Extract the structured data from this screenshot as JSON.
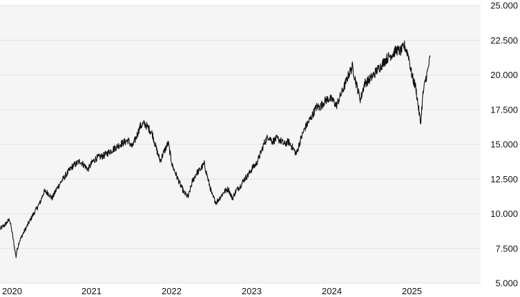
{
  "colors": {
    "plot_background": "#f5f5f5",
    "grid": "#e2e2e2",
    "line": "#111111",
    "text": "#111111"
  },
  "chart_data": {
    "type": "line",
    "title": "",
    "xlabel": "",
    "ylabel": "",
    "grid": "horizontal",
    "y_axis_side": "right",
    "xlim": [
      2020.0,
      2026.0
    ],
    "ylim": [
      5000,
      25000
    ],
    "x_ticks": [
      {
        "value": 2020,
        "label": "2020"
      },
      {
        "value": 2021,
        "label": "2021"
      },
      {
        "value": 2022,
        "label": "2022"
      },
      {
        "value": 2023,
        "label": "2023"
      },
      {
        "value": 2024,
        "label": "2024"
      },
      {
        "value": 2025,
        "label": "2025"
      }
    ],
    "y_ticks": [
      {
        "value": 5000,
        "label": "5.000"
      },
      {
        "value": 7500,
        "label": "7.500"
      },
      {
        "value": 10000,
        "label": "10.000"
      },
      {
        "value": 12500,
        "label": "12.500"
      },
      {
        "value": 15000,
        "label": "15.000"
      },
      {
        "value": 17500,
        "label": "17.500"
      },
      {
        "value": 20000,
        "label": "20.000"
      },
      {
        "value": 22500,
        "label": "22.500"
      },
      {
        "value": 25000,
        "label": "25.000"
      }
    ],
    "series": [
      {
        "x": [
          2020.0,
          2020.06,
          2020.12,
          2020.15,
          2020.18,
          2020.2,
          2020.21,
          2020.24,
          2020.3,
          2020.4,
          2020.5,
          2020.55,
          2020.6,
          2020.65,
          2020.7,
          2020.75,
          2020.8,
          2020.85,
          2020.9,
          2021.0,
          2021.1,
          2021.15,
          2021.2,
          2021.3,
          2021.4,
          2021.5,
          2021.6,
          2021.65,
          2021.7,
          2021.75,
          2021.8,
          2021.85,
          2021.9,
          2021.95,
          2022.0,
          2022.05,
          2022.1,
          2022.15,
          2022.2,
          2022.25,
          2022.3,
          2022.35,
          2022.4,
          2022.45,
          2022.5,
          2022.55,
          2022.6,
          2022.65,
          2022.7,
          2022.75,
          2022.8,
          2022.85,
          2022.9,
          2022.95,
          2023.0,
          2023.05,
          2023.1,
          2023.15,
          2023.2,
          2023.25,
          2023.3,
          2023.35,
          2023.4,
          2023.45,
          2023.5,
          2023.55,
          2023.6,
          2023.65,
          2023.7,
          2023.75,
          2023.8,
          2023.85,
          2023.9,
          2023.95,
          2024.0,
          2024.05,
          2024.1,
          2024.15,
          2024.2,
          2024.25,
          2024.3,
          2024.35,
          2024.4,
          2024.45,
          2024.5,
          2024.55,
          2024.6,
          2024.65,
          2024.7,
          2024.75,
          2024.8,
          2024.85,
          2024.9,
          2024.95,
          2025.0,
          2025.05,
          2025.1,
          2025.13,
          2025.16,
          2025.19,
          2025.22,
          2025.25,
          2025.28,
          2025.31,
          2025.34,
          2025.37
        ],
        "values": [
          8900,
          9200,
          9600,
          8700,
          7600,
          6900,
          7300,
          8000,
          8700,
          9800,
          10800,
          11600,
          11500,
          11100,
          11700,
          12200,
          12600,
          13000,
          13400,
          13800,
          13200,
          13700,
          14000,
          14200,
          14600,
          15000,
          15300,
          14800,
          15500,
          16300,
          16500,
          16200,
          15800,
          14700,
          13800,
          14500,
          15100,
          13500,
          12800,
          12100,
          11500,
          11200,
          12300,
          12900,
          13200,
          13600,
          12400,
          11300,
          10800,
          11200,
          11600,
          11800,
          11100,
          11700,
          12000,
          12500,
          12800,
          13300,
          13600,
          14300,
          15100,
          15600,
          15200,
          15400,
          15300,
          15000,
          15200,
          14800,
          14300,
          15300,
          16100,
          16600,
          17100,
          17700,
          17700,
          18100,
          18300,
          18200,
          17800,
          18500,
          19200,
          20000,
          20600,
          19300,
          18200,
          19400,
          19600,
          19900,
          20300,
          20600,
          21000,
          21300,
          21500,
          21800,
          21700,
          22100,
          21400,
          20300,
          19600,
          19100,
          17800,
          16500,
          18600,
          19600,
          20300,
          21300
        ]
      }
    ]
  }
}
